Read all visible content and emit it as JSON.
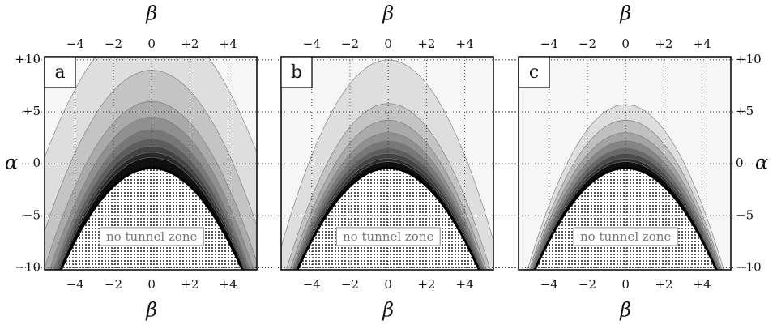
{
  "chart_data": [
    {
      "type": "contour",
      "panel_label": "a",
      "annotation": "no tunnel zone",
      "xlabel": "β",
      "x2label": "β",
      "ylabel": "α",
      "ytick_side": "left",
      "xlim": [
        -5.6,
        5.5
      ],
      "ylim": [
        -10.2,
        10.3
      ],
      "xticks": [
        {
          "value": -4,
          "label": "−4"
        },
        {
          "value": -2,
          "label": "−2"
        },
        0,
        {
          "value": 2,
          "label": "+2"
        },
        {
          "value": 4,
          "label": "+4"
        }
      ],
      "yticks": [
        {
          "value": 10,
          "label": "+10"
        },
        {
          "value": 5,
          "label": "+5"
        },
        0,
        {
          "value": -5,
          "label": "−5"
        },
        {
          "value": -10,
          "label": "−10"
        }
      ],
      "contour_apex": [
        14,
        9,
        6,
        4.5,
        3.3,
        2.4,
        1.7,
        1.1,
        0.6
      ],
      "contour_base": [
        7.5,
        6.2,
        5.6,
        5.3,
        5.1,
        5.0,
        4.9,
        4.85,
        4.8
      ],
      "boundary_apex": -0.4,
      "boundary_base": 4.7
    },
    {
      "type": "contour",
      "panel_label": "b",
      "annotation": "no tunnel zone",
      "xlabel": "β",
      "x2label": "β",
      "xlim": [
        -5.6,
        5.5
      ],
      "ylim": [
        -10.2,
        10.3
      ],
      "xticks": [
        {
          "value": -4,
          "label": "−4"
        },
        {
          "value": -2,
          "label": "−2"
        },
        0,
        {
          "value": 2,
          "label": "+2"
        },
        {
          "value": 4,
          "label": "+4"
        }
      ],
      "yticks": [
        10,
        5,
        0,
        -5,
        -10
      ],
      "contour_apex": [
        10,
        5.8,
        4.2,
        3.0,
        2.2,
        1.5,
        1.0,
        0.5,
        0.2
      ],
      "contour_base": [
        5.9,
        5.3,
        5.1,
        5.0,
        4.95,
        4.9,
        4.85,
        4.8,
        4.75
      ],
      "boundary_apex": -0.4,
      "boundary_base": 4.7
    },
    {
      "type": "contour",
      "panel_label": "c",
      "annotation": "no tunnel zone",
      "xlabel": "β",
      "x2label": "β",
      "ylabel": "α",
      "ytick_side": "right",
      "xlim": [
        -5.6,
        5.5
      ],
      "ylim": [
        -10.2,
        10.3
      ],
      "xticks": [
        {
          "value": -4,
          "label": "−4"
        },
        {
          "value": -2,
          "label": "−2"
        },
        0,
        {
          "value": 2,
          "label": "+2"
        },
        {
          "value": 4,
          "label": "+4"
        }
      ],
      "yticks": [
        {
          "value": 10,
          "label": "+10"
        },
        {
          "value": 5,
          "label": "+5"
        },
        0,
        {
          "value": -5,
          "label": "−5"
        },
        {
          "value": -10,
          "label": "−10"
        }
      ],
      "contour_apex": [
        5.7,
        4.2,
        3.0,
        2.2,
        1.5,
        1.0,
        0.5,
        0.2
      ],
      "contour_base": [
        5.1,
        5.0,
        4.95,
        4.9,
        4.85,
        4.8,
        4.78,
        4.75
      ],
      "boundary_apex": -0.4,
      "boundary_base": 4.7
    }
  ]
}
